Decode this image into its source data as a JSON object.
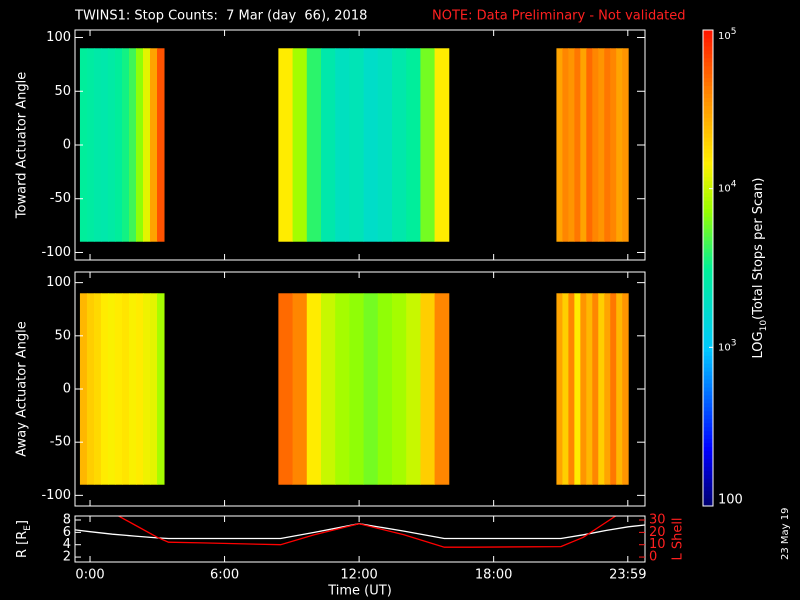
{
  "title": "TWINS1: Stop Counts:  7 Mar (day  66), 2018",
  "note": "NOTE: Data Preliminary - Not validated",
  "date_stamp": "23 May 19",
  "time_axis": {
    "xlim": [
      -0.67,
      24.75
    ],
    "xticks": [
      {
        "value": 0,
        "label": "0:00"
      },
      {
        "value": 6,
        "label": "6:00"
      },
      {
        "value": 12,
        "label": "12:00"
      },
      {
        "value": 18,
        "label": "18:00"
      },
      {
        "value": 23.983,
        "label": "23:59"
      }
    ],
    "xlabel": "Time (UT)"
  },
  "colorbar": {
    "log": true,
    "lim": [
      100,
      100000
    ],
    "label_parts": [
      "LOG",
      "10",
      "(Total Stops per Scan)"
    ],
    "ticks": [
      {
        "value": 100000,
        "label": "10",
        "exponent": "5"
      },
      {
        "value": 10000,
        "label": "10",
        "exponent": "4"
      },
      {
        "value": 1000,
        "label": "10",
        "exponent": "3"
      },
      100
    ]
  },
  "chart_data": [
    {
      "type": "heatmap",
      "ylabel": "Toward Actuator Angle",
      "ylim": [
        -107,
        107
      ],
      "yticks": [
        -100,
        -50,
        0,
        50,
        100
      ],
      "angle_range": [
        -90,
        90
      ],
      "blocks": [
        {
          "start": -0.45,
          "end": 3.3,
          "values": [
            3000,
            2800,
            2600,
            2500,
            2700,
            3000,
            3500,
            4500,
            7000,
            12000,
            30000,
            60000
          ]
        },
        {
          "start": 8.4,
          "end": 16.0,
          "values": [
            15000,
            8000,
            4000,
            2500,
            2000,
            2200,
            1800,
            2000,
            2500,
            3000,
            6000,
            15000
          ]
        },
        {
          "start": 20.8,
          "end": 24.0,
          "values": [
            30000,
            40000,
            35000,
            45000,
            30000,
            50000,
            40000,
            35000,
            45000,
            40000,
            30000,
            35000
          ]
        }
      ]
    },
    {
      "type": "heatmap",
      "ylabel": "Away Actuator Angle",
      "ylim": [
        -110,
        110
      ],
      "yticks": [
        -100,
        -50,
        0,
        50,
        100
      ],
      "angle_range": [
        -90,
        90
      ],
      "blocks": [
        {
          "start": -0.45,
          "end": 3.3,
          "values": [
            25000,
            20000,
            18000,
            15000,
            14000,
            15000,
            16000,
            14000,
            15000,
            13000,
            12000,
            8000
          ]
        },
        {
          "start": 8.4,
          "end": 16.0,
          "values": [
            50000,
            40000,
            15000,
            10000,
            8000,
            7000,
            6000,
            7000,
            8000,
            10000,
            20000,
            40000
          ]
        },
        {
          "start": 20.8,
          "end": 24.0,
          "values": [
            30000,
            20000,
            40000,
            15000,
            35000,
            25000,
            40000,
            20000,
            30000,
            45000,
            25000,
            35000
          ]
        }
      ]
    },
    {
      "type": "line",
      "ylabel_parts": [
        "R [R",
        "E",
        "]"
      ],
      "y2label": "L Shell",
      "ylim": [
        1.2,
        8.65
      ],
      "yticks": [
        2,
        4,
        6,
        8
      ],
      "y2lim": [
        -4,
        33.25
      ],
      "y2ticks": [
        0,
        10,
        20,
        30
      ],
      "x": [
        -0.67,
        0,
        1,
        2,
        3,
        3.5,
        5,
        8.5,
        10,
        12,
        14,
        15.8,
        17,
        21,
        22,
        23,
        24,
        24.75
      ],
      "series": [
        {
          "name": "R",
          "color": "#ffffff",
          "values": [
            6.4,
            6.1,
            5.7,
            5.4,
            5.1,
            5.0,
            5.0,
            5.0,
            6.0,
            7.4,
            6.2,
            5.0,
            5.0,
            5.0,
            5.6,
            6.3,
            6.9,
            7.2
          ]
        },
        {
          "name": "L Shell",
          "color": "#ff0000",
          "axis": "y2",
          "values": [
            null,
            null,
            36,
            26,
            16,
            12,
            11.5,
            10,
            18,
            27,
            18,
            8,
            8,
            8.5,
            16,
            28,
            40,
            null
          ]
        }
      ]
    }
  ]
}
